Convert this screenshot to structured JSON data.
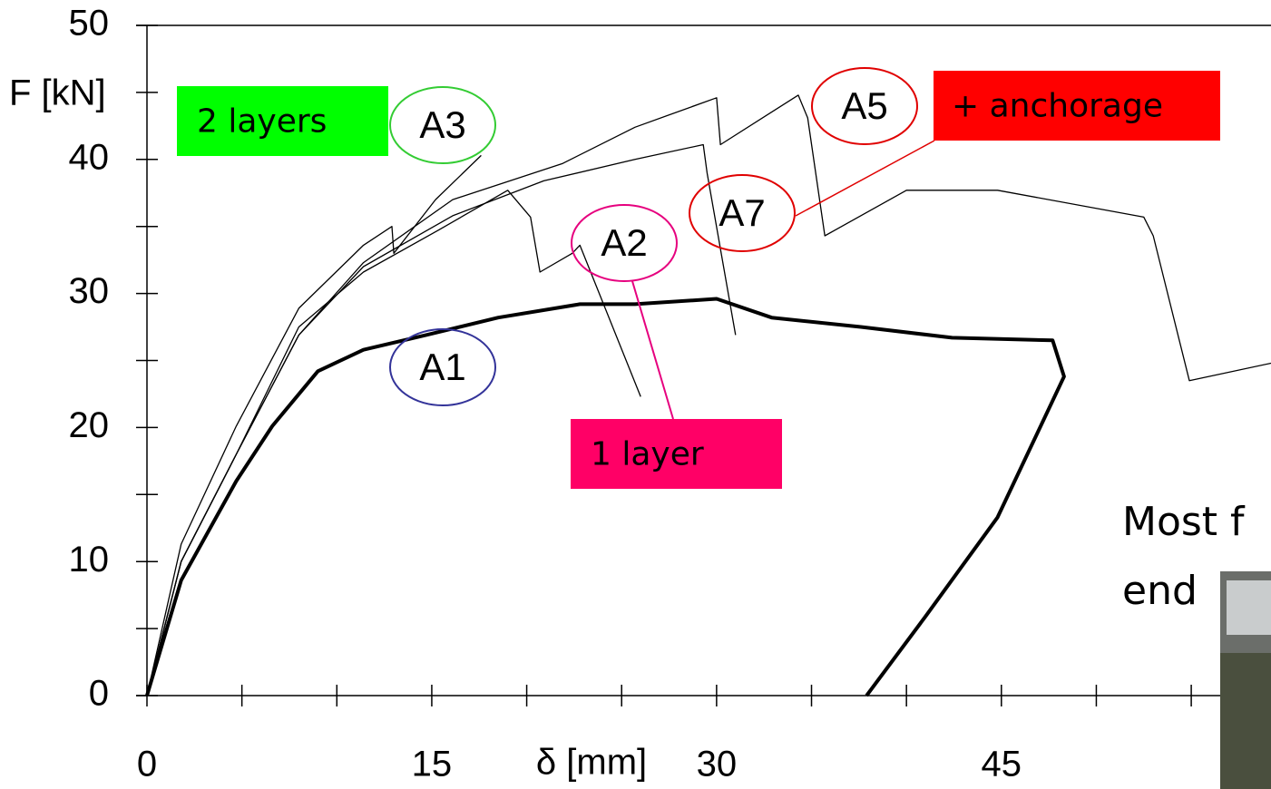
{
  "chart_data": {
    "type": "line",
    "y_label": "F [kN]",
    "x_label": "δ [mm]",
    "xlim": [
      0,
      59.2
    ],
    "ylim": [
      0,
      50
    ],
    "xticks": [
      0,
      15,
      30,
      45
    ],
    "xminorticks": [
      5,
      10,
      20,
      25,
      35,
      40,
      50,
      55
    ],
    "yticks": [
      0,
      10,
      20,
      30,
      40,
      50
    ],
    "yminorticks": [
      5,
      15,
      25,
      35,
      45
    ],
    "series": [
      {
        "name": "A1",
        "color": "#000000",
        "line_width": 4,
        "label_color": "#333399",
        "x": [
          0,
          1.8,
          4.7,
          6.6,
          9,
          11.4,
          14.7,
          18.5,
          22.8,
          25.7,
          30,
          32.9,
          37.6,
          42.4,
          47.7,
          48.3,
          44.8,
          41,
          37.9
        ],
        "values": [
          0,
          8.6,
          16,
          20.1,
          24.2,
          25.8,
          26.9,
          28.2,
          29.2,
          29.2,
          29.6,
          28.2,
          27.5,
          26.7,
          26.5,
          23.8,
          13.3,
          5.9,
          0
        ]
      },
      {
        "name": "A2",
        "color": "#000000",
        "line_width": 1.3,
        "label_color": "#e6007e",
        "x": [
          0,
          1.8,
          4.7,
          8,
          11.4,
          15.2,
          19,
          20.2,
          20.7,
          22.4,
          22.8,
          26
        ],
        "values": [
          0,
          10,
          18,
          27.5,
          31.6,
          34.6,
          37.7,
          35.7,
          31.6,
          33,
          33.6,
          22.3
        ]
      },
      {
        "name": "A3",
        "color": "#000000",
        "line_width": 1.3,
        "label_color": "#33cc33",
        "x": [
          0,
          1.8,
          4.7,
          8,
          11.4,
          12.9,
          13,
          15.2,
          17.6
        ],
        "values": [
          0,
          11.3,
          20.1,
          28.9,
          33.6,
          35,
          33,
          37,
          40.3
        ]
      },
      {
        "name": "A5",
        "color": "#000000",
        "line_width": 1.3,
        "label_color": "#e00000",
        "x": [
          0,
          1.8,
          4.7,
          8,
          11.4,
          16.1,
          21.9,
          25.7,
          30,
          30.2,
          34.3,
          34.8,
          35.7,
          40,
          44.8,
          52.5,
          53,
          54.9,
          59.2
        ],
        "values": [
          0,
          10,
          18,
          26.9,
          32.3,
          37,
          39.7,
          42.4,
          44.6,
          41.1,
          44.8,
          43.1,
          34.3,
          37.7,
          37.7,
          35.7,
          34.3,
          23.5,
          24.8
        ]
      },
      {
        "name": "A7",
        "color": "#000000",
        "line_width": 1.3,
        "label_color": "#e00000",
        "x": [
          0,
          1.8,
          4.7,
          8,
          11.4,
          16.1,
          20.9,
          25.7,
          29.3,
          29.5,
          31
        ],
        "values": [
          0,
          10,
          18,
          26.9,
          32,
          35.8,
          38.4,
          40,
          41.1,
          39,
          26.9
        ]
      }
    ],
    "annotations": [
      {
        "text": "2 layers",
        "color": "#00ff00"
      },
      {
        "text": "+ anchorage",
        "color": "#ff0000"
      },
      {
        "text": "1 layer",
        "color": "#ff0066"
      }
    ],
    "note_lines": [
      "Most f",
      "end"
    ]
  }
}
